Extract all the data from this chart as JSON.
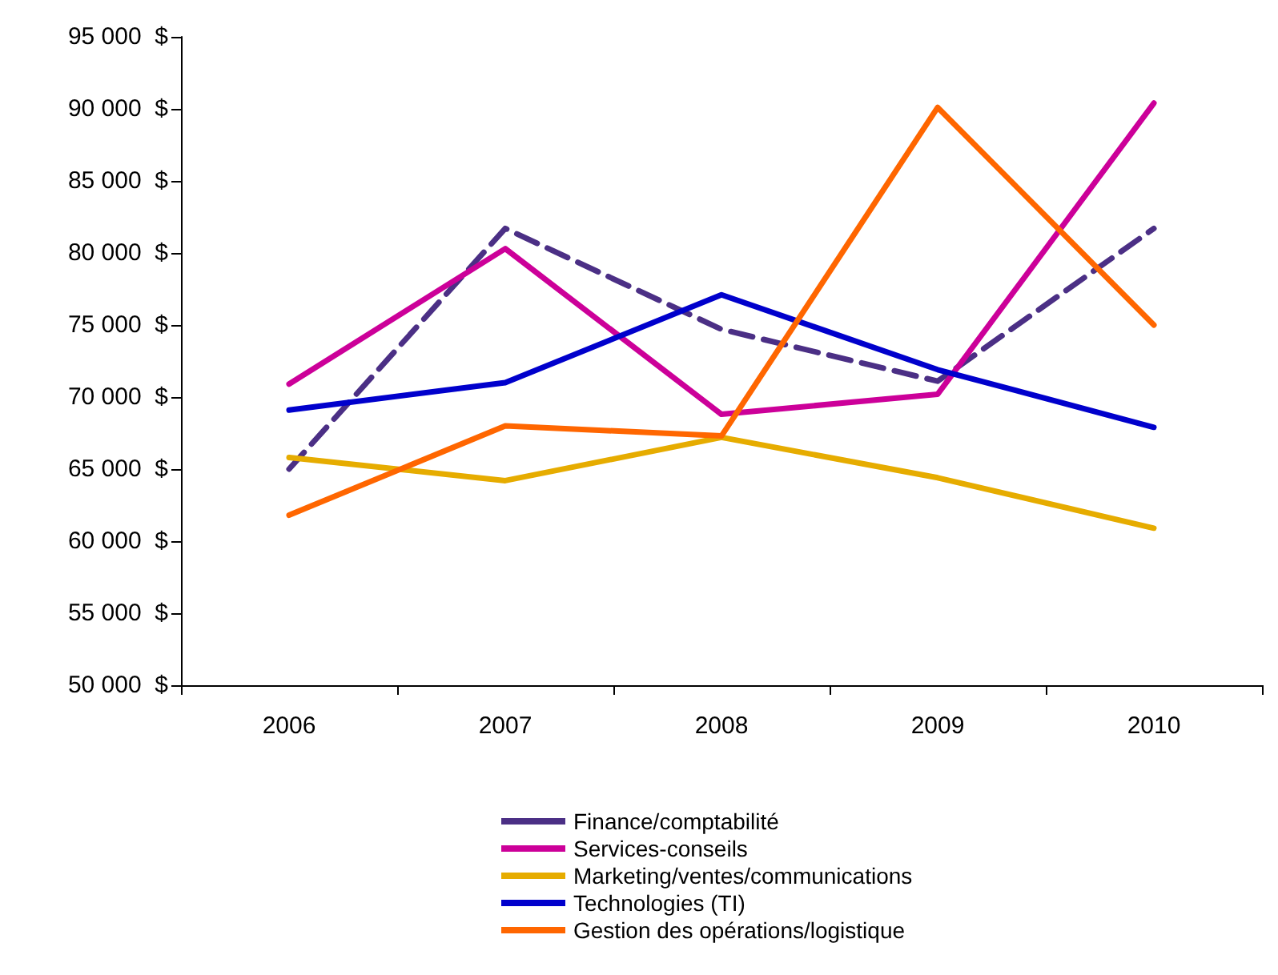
{
  "chart_data": {
    "type": "line",
    "categories": [
      "2006",
      "2007",
      "2008",
      "2009",
      "2010"
    ],
    "series": [
      {
        "name": "Finance/comptabilité",
        "color": "#4b2f85",
        "line_style": "dashed",
        "values": [
          65000,
          81700,
          74700,
          71100,
          81700
        ]
      },
      {
        "name": "Services-conseils",
        "color": "#cc0099",
        "values": [
          70900,
          80300,
          68800,
          70200,
          90400
        ]
      },
      {
        "name": "Marketing/ventes/communications",
        "color": "#e6ac00",
        "values": [
          65800,
          64200,
          67200,
          64400,
          60900
        ]
      },
      {
        "name": "Technologies (TI)",
        "color": "#0000cc",
        "values": [
          69100,
          71000,
          77100,
          71900,
          67900
        ]
      },
      {
        "name": "Gestion des opérations/logistique",
        "color": "#ff6600",
        "values": [
          61800,
          68000,
          67300,
          90100,
          75000
        ]
      }
    ],
    "ylim": [
      50000,
      95000
    ],
    "yticks": [
      {
        "value": 50000,
        "label": "50 000  $"
      },
      {
        "value": 55000,
        "label": "55 000  $"
      },
      {
        "value": 60000,
        "label": "60 000  $"
      },
      {
        "value": 65000,
        "label": "65 000  $"
      },
      {
        "value": 70000,
        "label": "70 000  $"
      },
      {
        "value": 75000,
        "label": "75 000  $"
      },
      {
        "value": 80000,
        "label": "80 000  $"
      },
      {
        "value": 85000,
        "label": "85 000  $"
      },
      {
        "value": 90000,
        "label": "90 000  $"
      },
      {
        "value": 95000,
        "label": "95 000  $"
      }
    ],
    "grid": false,
    "legend": "bottom",
    "marker": "none",
    "line_style": "solid"
  }
}
